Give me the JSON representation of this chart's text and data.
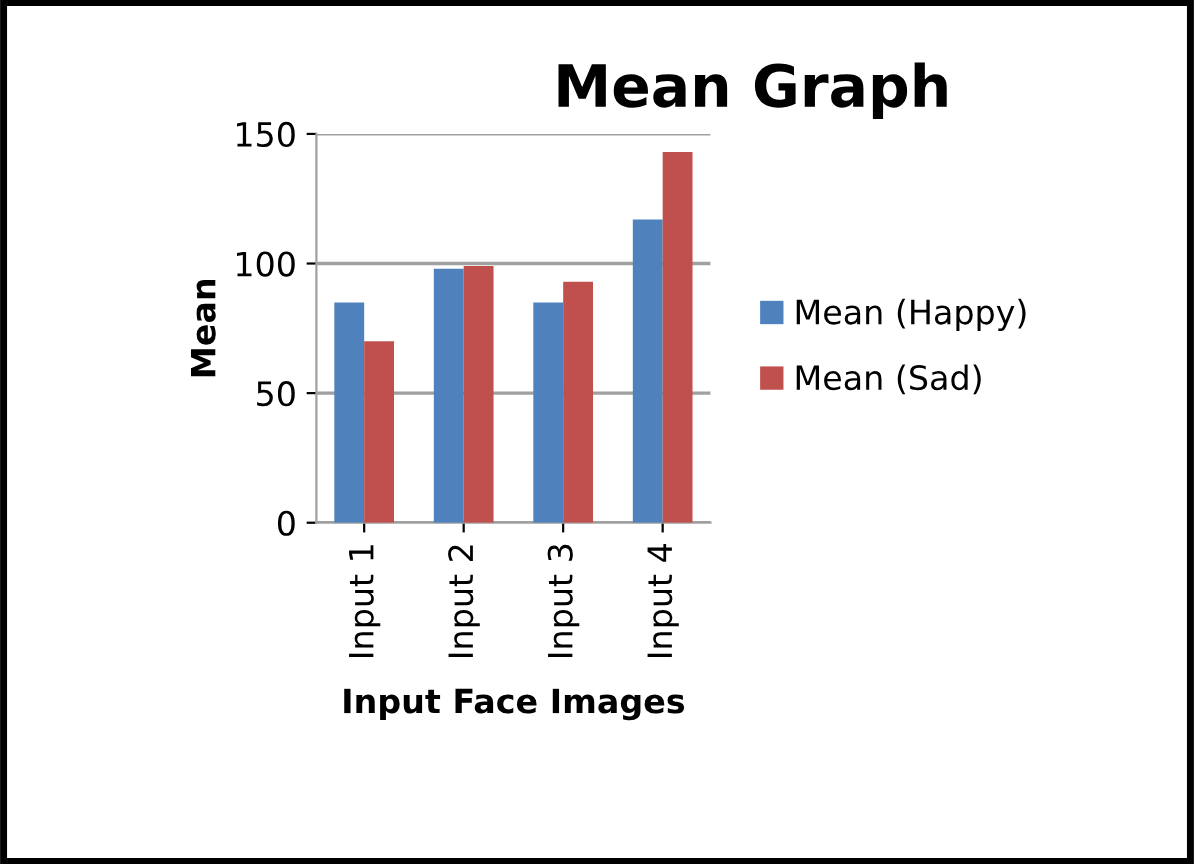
{
  "chart_data": {
    "type": "bar",
    "title": "Mean Graph",
    "xlabel": "Input Face Images",
    "ylabel": "Mean",
    "categories": [
      "Input 1",
      "Input 2",
      "Input 3",
      "Input 4"
    ],
    "series": [
      {
        "name": "Mean (Happy)",
        "color": "#4f81bd",
        "values": [
          85,
          98,
          85,
          117
        ]
      },
      {
        "name": "Mean (Sad)",
        "color": "#c0504d",
        "values": [
          70,
          99,
          93,
          143
        ]
      }
    ],
    "ylim": [
      0,
      150
    ],
    "yticks": [
      0,
      50,
      100,
      150
    ],
    "grid": "y",
    "legend": "right"
  }
}
